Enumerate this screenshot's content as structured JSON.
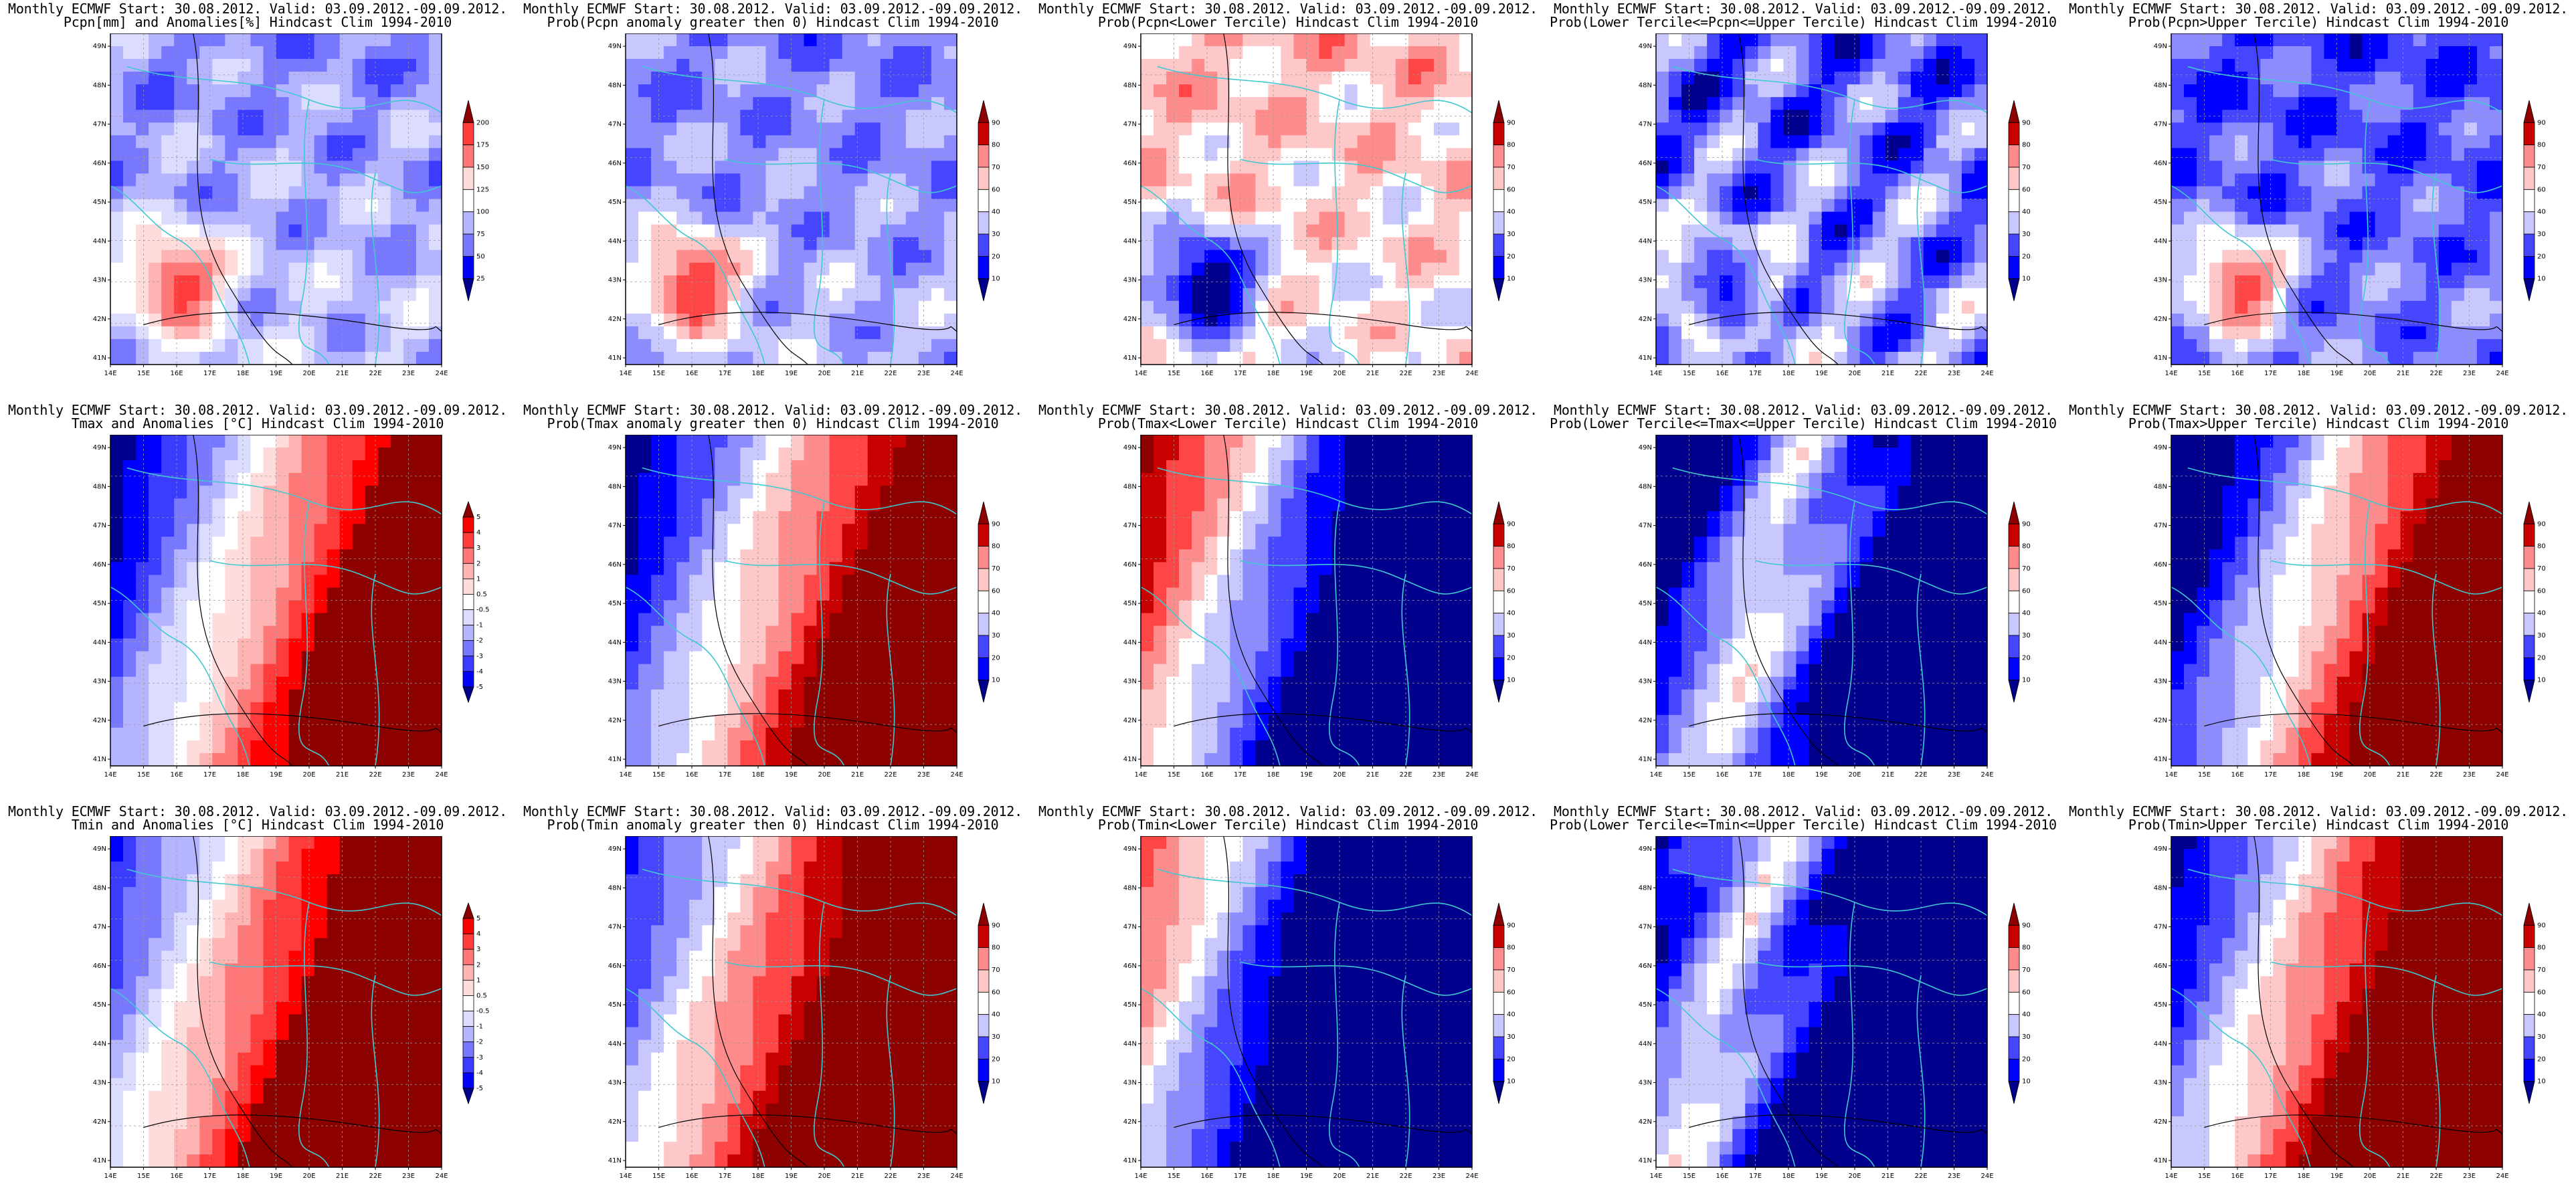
{
  "panels": [
    {
      "title1": "Monthly ECMWF Start: 30.08.2012. Valid: 03.09.2012.-09.09.2012.",
      "title2": "Pcpn[mm] and Anomalies[%] Hindcast Clim 1994-2010",
      "colorbar": [
        "25",
        "50",
        "75",
        "100",
        "125",
        "150",
        "175",
        "200"
      ],
      "variable": "precip",
      "kind": "anom"
    },
    {
      "title1": "Monthly ECMWF Start: 30.08.2012. Valid: 03.09.2012.-09.09.2012.",
      "title2": "Prob(Pcpn anomaly greater then 0) Hindcast Clim 1994-2010",
      "colorbar": [
        "10",
        "20",
        "30",
        "40",
        "60",
        "70",
        "80",
        "90"
      ],
      "variable": "precip",
      "kind": "pgt0"
    },
    {
      "title1": "Monthly ECMWF Start: 30.08.2012. Valid: 03.09.2012.-09.09.2012.",
      "title2": "Prob(Pcpn<Lower Tercile) Hindcast Clim 1994-2010",
      "colorbar": [
        "10",
        "20",
        "30",
        "40",
        "60",
        "70",
        "80",
        "90"
      ],
      "variable": "precip",
      "kind": "lower"
    },
    {
      "title1": "Monthly ECMWF Start: 30.08.2012. Valid: 03.09.2012.-09.09.2012.",
      "title2": "Prob(Lower Tercile<=Pcpn<=Upper Tercile) Hindcast Clim 1994-2010",
      "colorbar": [
        "10",
        "20",
        "30",
        "40",
        "60",
        "70",
        "80",
        "90"
      ],
      "variable": "precip",
      "kind": "middle"
    },
    {
      "title1": "Monthly ECMWF Start: 30.08.2012. Valid: 03.09.2012.-09.09.2012.",
      "title2": "Prob(Pcpn>Upper Tercile) Hindcast Clim 1994-2010",
      "colorbar": [
        "10",
        "20",
        "30",
        "40",
        "60",
        "70",
        "80",
        "90"
      ],
      "variable": "precip",
      "kind": "upper"
    },
    {
      "title1": "Monthly ECMWF Start: 30.08.2012. Valid: 03.09.2012.-09.09.2012.",
      "title2": "Tmax and Anomalies [°C] Hindcast Clim 1994-2010",
      "colorbar": [
        "-5",
        "-4",
        "-3",
        "-2",
        "-1",
        "-0.5",
        "0.5",
        "1",
        "2",
        "3",
        "4",
        "5"
      ],
      "variable": "tmax",
      "kind": "anom"
    },
    {
      "title1": "Monthly ECMWF Start: 30.08.2012. Valid: 03.09.2012.-09.09.2012.",
      "title2": "Prob(Tmax anomaly greater then 0) Hindcast Clim 1994-2010",
      "colorbar": [
        "10",
        "20",
        "30",
        "40",
        "60",
        "70",
        "80",
        "90"
      ],
      "variable": "tmax",
      "kind": "pgt0"
    },
    {
      "title1": "Monthly ECMWF Start: 30.08.2012. Valid: 03.09.2012.-09.09.2012.",
      "title2": "Prob(Tmax<Lower Tercile) Hindcast Clim 1994-2010",
      "colorbar": [
        "10",
        "20",
        "30",
        "40",
        "60",
        "70",
        "80",
        "90"
      ],
      "variable": "tmax",
      "kind": "lower"
    },
    {
      "title1": "Monthly ECMWF Start: 30.08.2012. Valid: 03.09.2012.-09.09.2012.",
      "title2": "Prob(Lower Tercile<=Tmax<=Upper Tercile) Hindcast Clim 1994-2010",
      "colorbar": [
        "10",
        "20",
        "30",
        "40",
        "60",
        "70",
        "80",
        "90"
      ],
      "variable": "tmax",
      "kind": "middle"
    },
    {
      "title1": "Monthly ECMWF Start: 30.08.2012. Valid: 03.09.2012.-09.09.2012.",
      "title2": "Prob(Tmax>Upper Tercile) Hindcast Clim 1994-2010",
      "colorbar": [
        "10",
        "20",
        "30",
        "40",
        "60",
        "70",
        "80",
        "90"
      ],
      "variable": "tmax",
      "kind": "upper"
    },
    {
      "title1": "Monthly ECMWF Start: 30.08.2012. Valid: 03.09.2012.-09.09.2012.",
      "title2": "Tmin and Anomalies [°C] Hindcast Clim 1994-2010",
      "colorbar": [
        "-5",
        "-4",
        "-3",
        "-2",
        "-1",
        "-0.5",
        "0.5",
        "1",
        "2",
        "3",
        "4",
        "5"
      ],
      "variable": "tmin",
      "kind": "anom"
    },
    {
      "title1": "Monthly ECMWF Start: 30.08.2012. Valid: 03.09.2012.-09.09.2012.",
      "title2": "Prob(Tmin anomaly greater then 0) Hindcast Clim 1994-2010",
      "colorbar": [
        "10",
        "20",
        "30",
        "40",
        "60",
        "70",
        "80",
        "90"
      ],
      "variable": "tmin",
      "kind": "pgt0"
    },
    {
      "title1": "Monthly ECMWF Start: 30.08.2012. Valid: 03.09.2012.-09.09.2012.",
      "title2": "Prob(Tmin<Lower Tercile) Hindcast Clim 1994-2010",
      "colorbar": [
        "10",
        "20",
        "30",
        "40",
        "60",
        "70",
        "80",
        "90"
      ],
      "variable": "tmin",
      "kind": "lower"
    },
    {
      "title1": "Monthly ECMWF Start: 30.08.2012. Valid: 03.09.2012.-09.09.2012.",
      "title2": "Prob(Lower Tercile<=Tmin<=Upper Tercile) Hindcast Clim 1994-2010",
      "colorbar": [
        "10",
        "20",
        "30",
        "40",
        "60",
        "70",
        "80",
        "90"
      ],
      "variable": "tmin",
      "kind": "middle"
    },
    {
      "title1": "Monthly ECMWF Start: 30.08.2012. Valid: 03.09.2012.-09.09.2012.",
      "title2": "Prob(Tmin>Upper Tercile) Hindcast Clim 1994-2010",
      "colorbar": [
        "10",
        "20",
        "30",
        "40",
        "60",
        "70",
        "80",
        "90"
      ],
      "variable": "tmin",
      "kind": "upper"
    }
  ],
  "lon_labels": [
    "14E",
    "15E",
    "16E",
    "17E",
    "18E",
    "19E",
    "20E",
    "21E",
    "22E",
    "23E",
    "24E"
  ],
  "lat_labels": [
    "41N",
    "42N",
    "43N",
    "44N",
    "45N",
    "46N",
    "47N",
    "48N",
    "49N"
  ],
  "colors": {
    "anomaly_scale": [
      "#00008c",
      "#0000ff",
      "#3c3cff",
      "#7878ff",
      "#b4b4ff",
      "#dcdcff",
      "#ffffff",
      "#ffdcdc",
      "#ffb4b4",
      "#ff7878",
      "#ff3c3c",
      "#ff0000",
      "#8c0000"
    ],
    "prob_scale": [
      "#00008c",
      "#0000ff",
      "#4646ff",
      "#8c8cff",
      "#c8c8ff",
      "#ffffff",
      "#ffc8c8",
      "#ff8c8c",
      "#ff4646",
      "#c80000",
      "#8c0000"
    ],
    "border": "#40c8d0",
    "contour": "#000000"
  }
}
